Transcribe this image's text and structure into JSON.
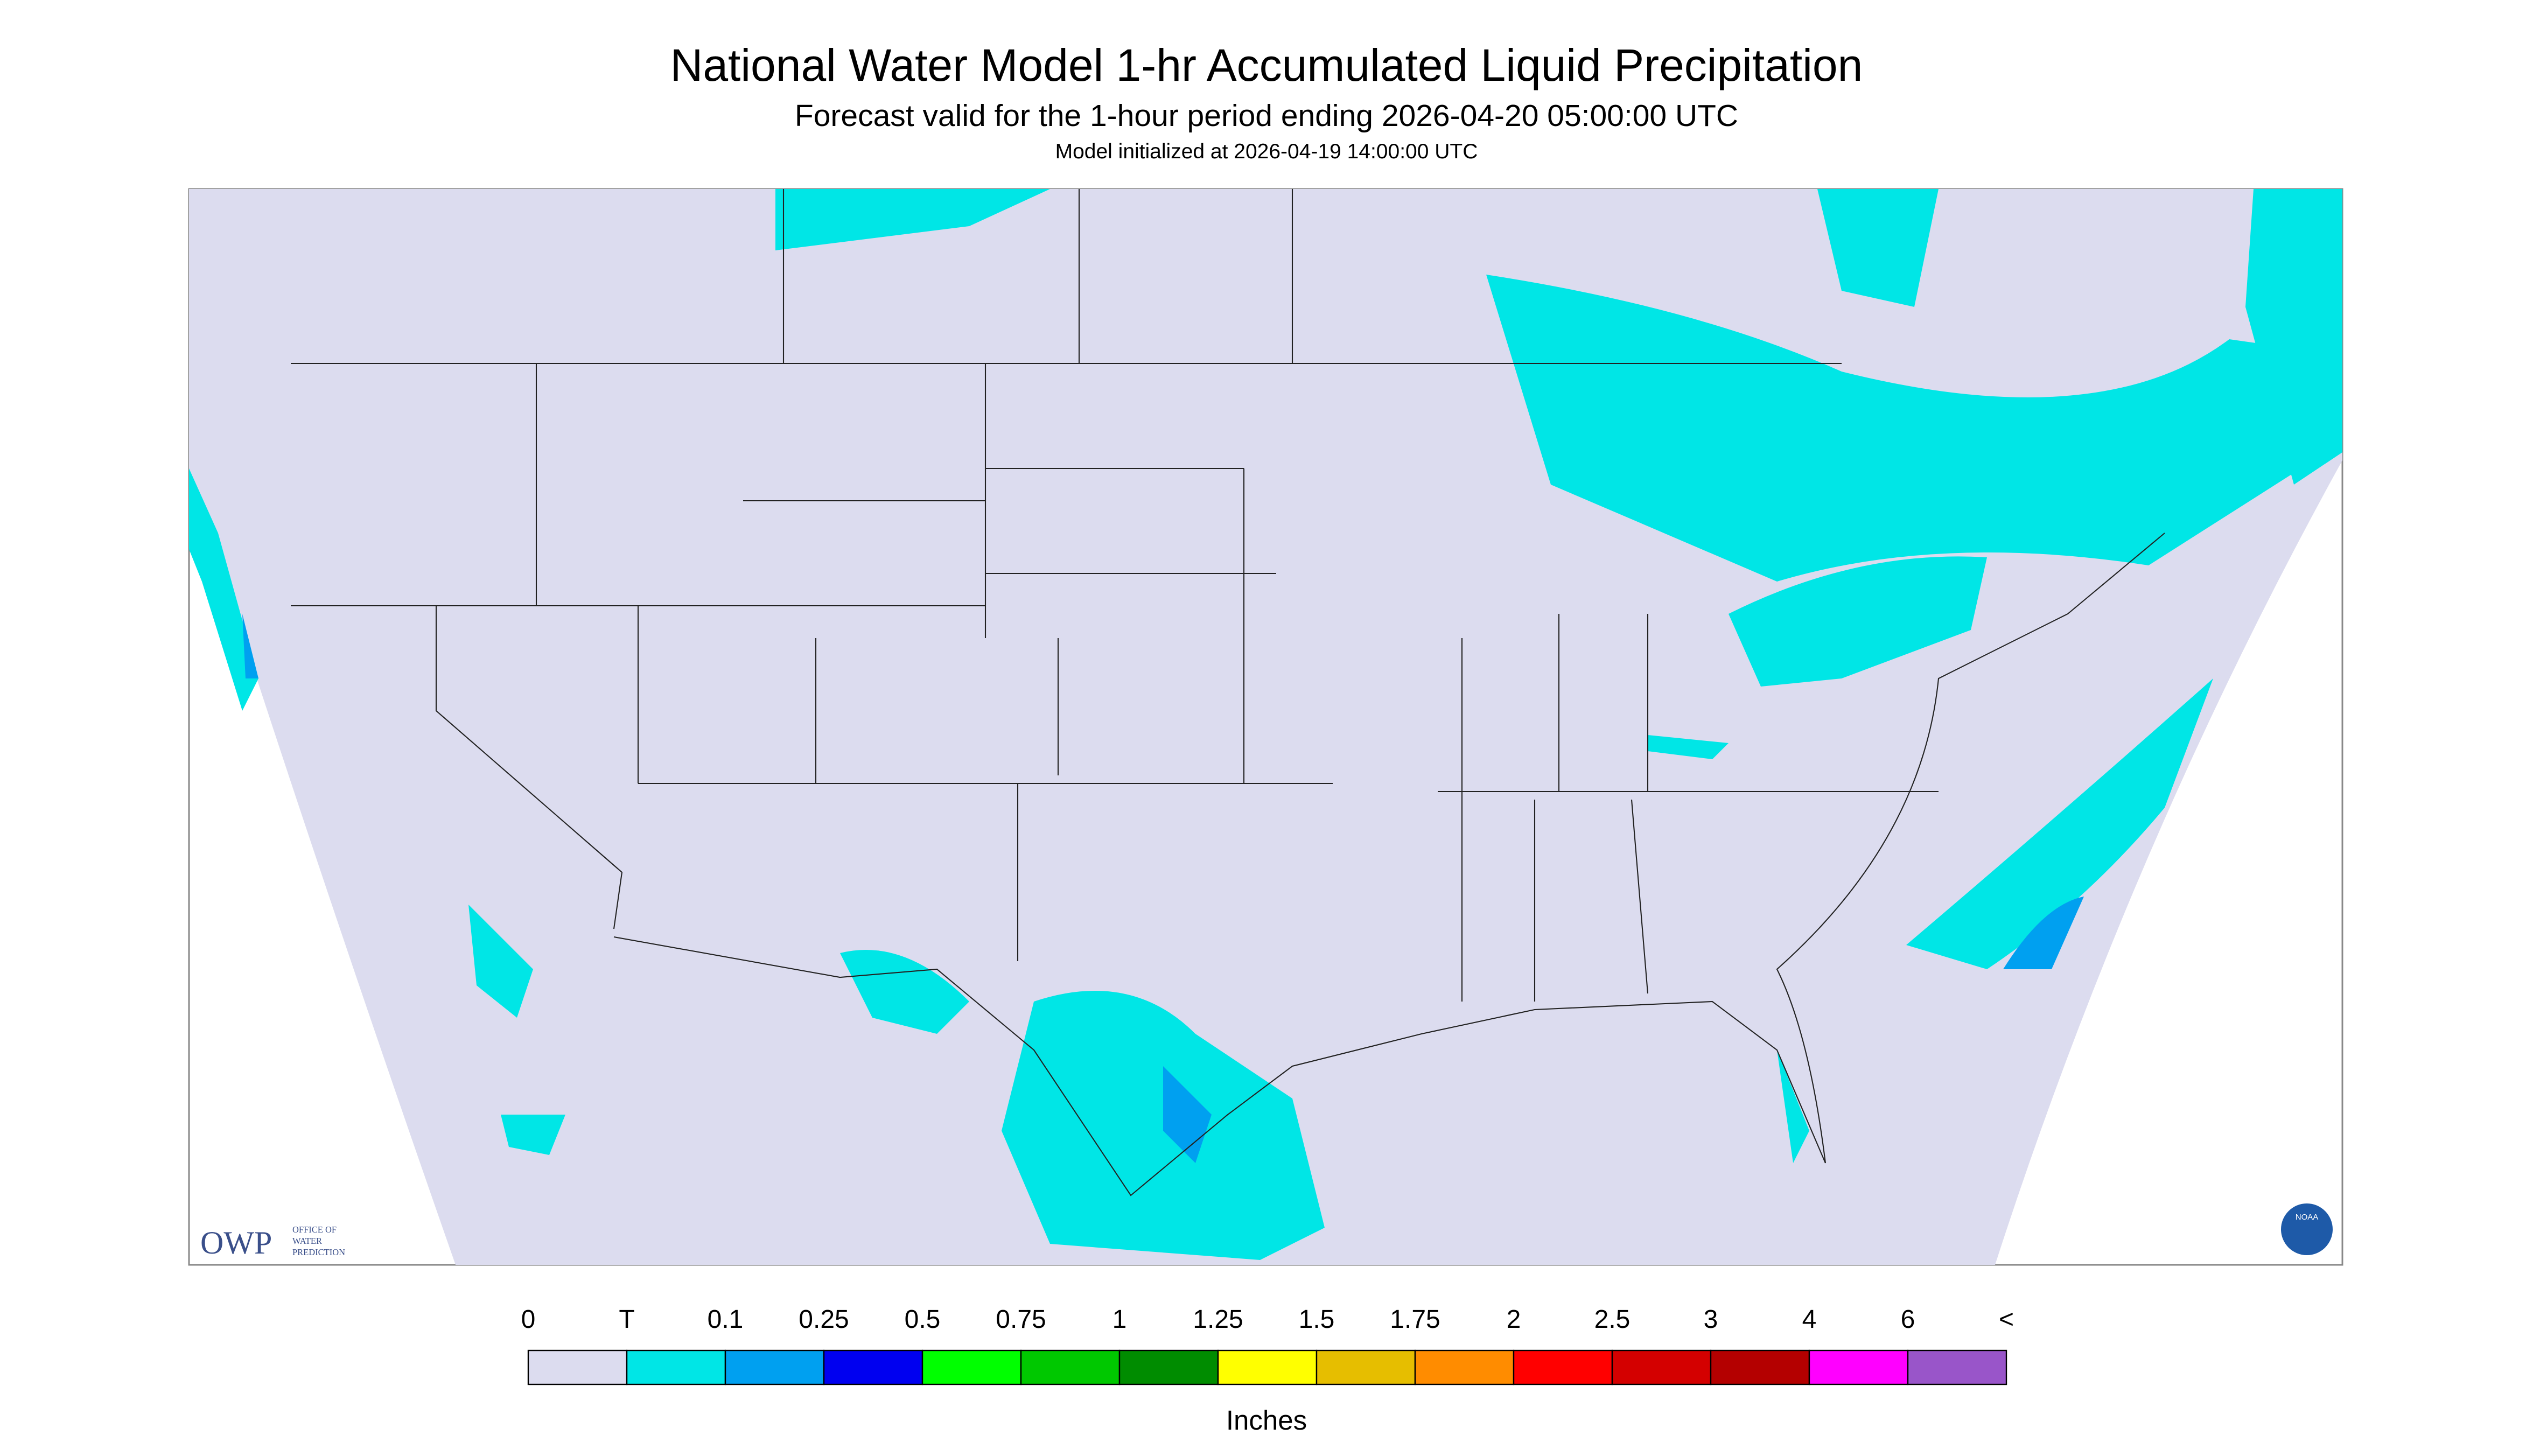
{
  "header": {
    "title": "National Water Model 1-hr Accumulated Liquid Precipitation",
    "subtitle": "Forecast valid for the 1-hour period ending 2026-04-20 05:00:00 UTC",
    "initialized": "Model initialized at 2026-04-19 14:00:00 UTC"
  },
  "logo": {
    "acronym": "OWP",
    "name_lines": [
      "OFFICE OF",
      "WATER",
      "PREDICTION"
    ],
    "badge": "NOAA"
  },
  "colorbar": {
    "labels": [
      "0",
      "T",
      "0.1",
      "0.25",
      "0.5",
      "0.75",
      "1",
      "1.25",
      "1.5",
      "1.75",
      "2",
      "2.5",
      "3",
      "4",
      "6",
      "<"
    ],
    "colors": [
      "#dcdcef",
      "#00e6e6",
      "#00a0f0",
      "#0000f0",
      "#00ff00",
      "#00c800",
      "#008c00",
      "#ffff00",
      "#e6be00",
      "#ff8c00",
      "#ff0000",
      "#d40000",
      "#b40000",
      "#ff00ff",
      "#9955c9"
    ],
    "unit": "Inches"
  }
}
